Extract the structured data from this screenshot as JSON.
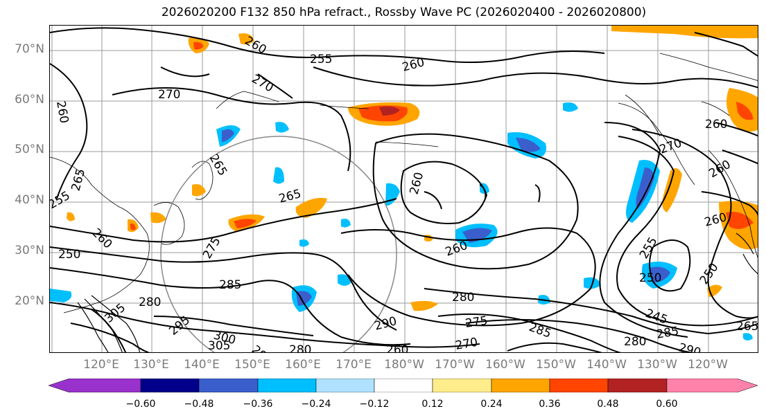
{
  "title": "2026020200 F132 850 hPa refract., Rossby Wave PC (2026020400 - 2026020800)",
  "lat_labels": [
    "70°N",
    "60°N",
    "50°N",
    "40°N",
    "30°N",
    "20°N"
  ],
  "lon_labels": [
    "120°E",
    "130°E",
    "140°E",
    "150°E",
    "160°E",
    "170°E",
    "180°W",
    "170°W",
    "160°W",
    "150°W",
    "140°W",
    "130°W",
    "120°W"
  ],
  "colorbar": {
    "ticks": [
      "−0.60",
      "−0.48",
      "−0.36",
      "−0.24",
      "−0.12",
      "0.12",
      "0.24",
      "0.36",
      "0.48",
      "0.60"
    ],
    "colors": [
      "#9932cc",
      "#00008b",
      "#3a5fcd",
      "#00bfff",
      "#b0e2ff",
      "#ffffff",
      "#ffec8b",
      "#ffa500",
      "#ff4500",
      "#b22222",
      "#ff82ab",
      "#ff82ab"
    ]
  },
  "contour_labels": [
    "255",
    "260",
    "260",
    "260",
    "270",
    "270",
    "270",
    "265",
    "265",
    "260",
    "260",
    "260",
    "265",
    "255",
    "260",
    "250",
    "275",
    "285",
    "280",
    "295",
    "305",
    "300",
    "305",
    "290",
    "280",
    "290",
    "280",
    "275",
    "270",
    "285",
    "260",
    "255",
    "250",
    "245",
    "280",
    "285",
    "290",
    "260",
    "260",
    "250",
    "265"
  ],
  "icons": {
    "map": "world-map-icon",
    "circle": "influence-circle"
  }
}
